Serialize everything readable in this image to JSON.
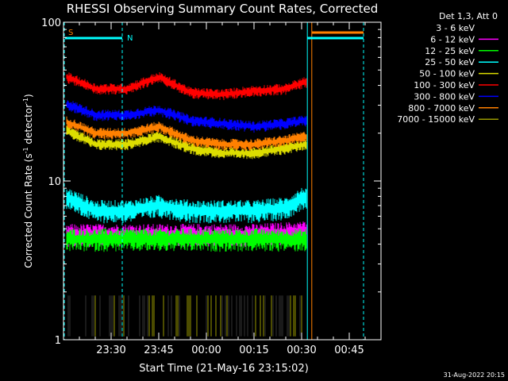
{
  "chart_data": {
    "type": "line",
    "title": "RHESSI Observing Summary Count Rates, Corrected",
    "xlabel": "Start Time (21-May-16 23:15:02)",
    "ylabel_main": "Corrected Count Rate (s",
    "ylabel_sup1": "-1",
    "ylabel_mid": " detector",
    "ylabel_sup2": "-1",
    "ylabel_end": ")",
    "yscale": "log",
    "ylim": [
      1,
      100
    ],
    "y_ticks": [
      {
        "value": 1,
        "label": "1"
      },
      {
        "value": 10,
        "label": "10"
      },
      {
        "value": 100,
        "label": "100"
      }
    ],
    "x_ticks": [
      {
        "value": 15,
        "label": "23:30"
      },
      {
        "value": 30,
        "label": "23:45"
      },
      {
        "value": 45,
        "label": "00:00"
      },
      {
        "value": 60,
        "label": "00:15"
      },
      {
        "value": 75,
        "label": "00:30"
      },
      {
        "value": 90,
        "label": "00:45"
      }
    ],
    "xlim": [
      0,
      100
    ],
    "legend_placement": "right",
    "legend_title": "Det 1,3, Att 0",
    "series": [
      {
        "name": "3 - 6 keV",
        "color": "#000000"
      },
      {
        "name": "6 - 12 keV",
        "color": "#ff00ff"
      },
      {
        "name": "12 - 25 keV",
        "color": "#00ff00"
      },
      {
        "name": "25 - 50 keV",
        "color": "#00ffff"
      },
      {
        "name": "50 - 100 keV",
        "color": "#dddd00"
      },
      {
        "name": "100 - 300 keV",
        "color": "#ff0000"
      },
      {
        "name": "300 - 800 keV",
        "color": "#0000ff"
      },
      {
        "name": "800 - 7000 keV",
        "color": "#ff8000"
      },
      {
        "name": "7000 - 15000 keV",
        "color": "#999900"
      }
    ],
    "levels": [
      {
        "series": "100 - 300 keV",
        "x": [
          0,
          10,
          20,
          30,
          40,
          50,
          60,
          70,
          76
        ],
        "y": [
          46,
          38,
          38,
          45,
          36,
          35,
          37,
          38,
          42
        ]
      },
      {
        "series": "300 - 800 keV",
        "x": [
          0,
          10,
          20,
          30,
          40,
          50,
          60,
          70,
          76
        ],
        "y": [
          31,
          26,
          26,
          28,
          24,
          23,
          22,
          23,
          24
        ]
      },
      {
        "series": "800 - 7000 keV",
        "x": [
          0,
          10,
          20,
          30,
          40,
          50,
          60,
          70,
          76
        ],
        "y": [
          24,
          20,
          20,
          22,
          18,
          17,
          17,
          18,
          19
        ]
      },
      {
        "series": "50 - 100 keV",
        "x": [
          0,
          10,
          20,
          30,
          40,
          50,
          60,
          70,
          76
        ],
        "y": [
          21,
          17,
          17,
          19,
          16,
          15,
          15,
          16,
          17
        ]
      },
      {
        "series": "25 - 50 keV",
        "x": [
          0,
          10,
          20,
          30,
          40,
          50,
          60,
          70,
          76
        ],
        "y": [
          8,
          6.5,
          6.5,
          7,
          6.5,
          6.5,
          6.5,
          6.8,
          8
        ]
      },
      {
        "series": "6 - 12 keV",
        "x": [
          0,
          20,
          40,
          60,
          76
        ],
        "y": [
          4.6,
          4.6,
          4.6,
          4.6,
          4.8
        ]
      },
      {
        "series": "12 - 25 keV",
        "x": [
          0,
          20,
          40,
          60,
          76
        ],
        "y": [
          4.3,
          4.3,
          4.3,
          4.3,
          4.3
        ]
      },
      {
        "series": "3 - 6 keV",
        "x": [
          0,
          20,
          40,
          60,
          76
        ],
        "y": [
          1.6,
          1.6,
          1.8,
          1.7,
          1.7
        ]
      }
    ],
    "flags": [
      {
        "label": "S",
        "color": "#ff8000",
        "x": [
          0,
          0.5
        ]
      },
      {
        "label": "N",
        "color": "#00ffff",
        "x": [
          0,
          18.5
        ]
      }
    ],
    "timestamp": "31-Aug-2022 20:15"
  }
}
